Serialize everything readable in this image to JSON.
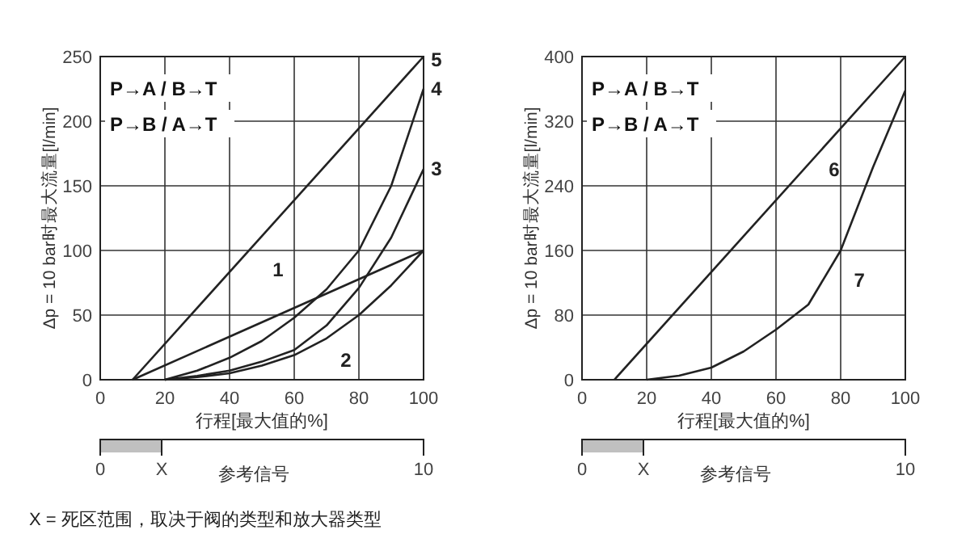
{
  "chart_data": [
    {
      "type": "line",
      "xlabel": "行程[最大值的%]",
      "ylabel": "Δp = 10 bar时最大流量[l/min]",
      "xlim": [
        0,
        100
      ],
      "ylim": [
        0,
        250
      ],
      "xticks": [
        0,
        20,
        40,
        60,
        80,
        100
      ],
      "yticks": [
        0,
        50,
        100,
        150,
        200,
        250
      ],
      "grid": true,
      "marker": "none",
      "line_style": "solid",
      "series": [
        {
          "name": "5",
          "color": "#222222",
          "x": [
            10,
            100
          ],
          "values": [
            0,
            250
          ]
        },
        {
          "name": "4",
          "color": "#222222",
          "x": [
            20,
            30,
            40,
            50,
            60,
            70,
            80,
            90,
            100
          ],
          "values": [
            0,
            7,
            17,
            30,
            48,
            70,
            100,
            150,
            225
          ]
        },
        {
          "name": "3",
          "color": "#222222",
          "x": [
            20,
            30,
            40,
            50,
            60,
            70,
            80,
            90,
            100
          ],
          "values": [
            0,
            3,
            7,
            14,
            23,
            42,
            71,
            110,
            163
          ]
        },
        {
          "name": "1",
          "color": "#222222",
          "x": [
            10,
            100
          ],
          "values": [
            0,
            100
          ]
        },
        {
          "name": "2",
          "color": "#222222",
          "x": [
            20,
            30,
            40,
            50,
            60,
            70,
            80,
            90,
            100
          ],
          "values": [
            0,
            2,
            5,
            11,
            19,
            32,
            50,
            73,
            100
          ]
        }
      ],
      "annotations": [
        "P→A / B→T",
        "P→B / A→T",
        "0",
        "X",
        "10",
        "参考信号",
        "X = 死区范围，取决于阀的类型和放大器类型"
      ]
    },
    {
      "type": "line",
      "xlabel": "行程[最大值的%]",
      "ylabel": "Δp = 10 bar时最大流量[l/min]",
      "xlim": [
        0,
        100
      ],
      "ylim": [
        0,
        400
      ],
      "xticks": [
        0,
        20,
        40,
        60,
        80,
        100
      ],
      "yticks": [
        0,
        80,
        160,
        240,
        320,
        400
      ],
      "grid": true,
      "marker": "none",
      "line_style": "solid",
      "series": [
        {
          "name": "6",
          "color": "#222222",
          "x": [
            10,
            100
          ],
          "values": [
            0,
            400
          ]
        },
        {
          "name": "7",
          "color": "#222222",
          "x": [
            20,
            30,
            40,
            50,
            60,
            70,
            80,
            90,
            100
          ],
          "values": [
            0,
            5,
            15,
            35,
            62,
            93,
            160,
            263,
            358
          ]
        }
      ],
      "annotations": [
        "P→A / B→T",
        "P→B / A→T",
        "0",
        "X",
        "10",
        "参考信号"
      ]
    }
  ]
}
